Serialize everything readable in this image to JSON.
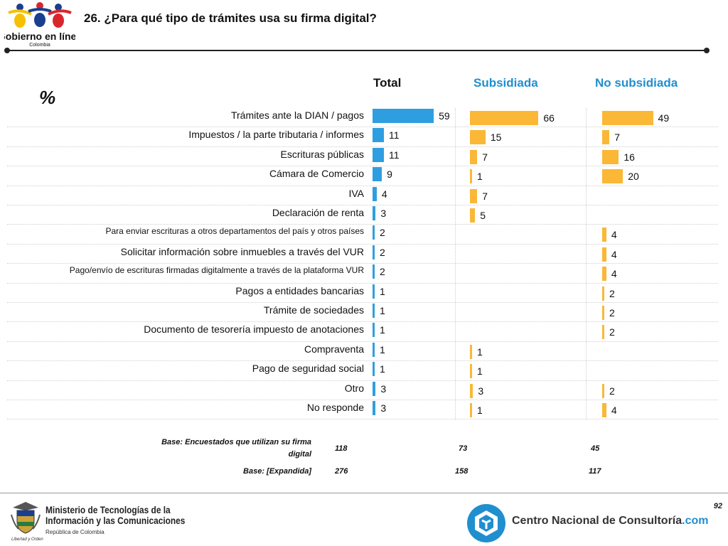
{
  "header": {
    "question": "26. ¿Para qué tipo de trámites usa su firma digital?",
    "logo_name": "Gobierno en línea",
    "logo_country": "Colombia"
  },
  "percent_symbol": "%",
  "colors": {
    "total": "#2f9ee0",
    "segment": "#fbb736",
    "separator": "#cfcfcf"
  },
  "chart_data": {
    "type": "bar",
    "orientation": "horizontal",
    "unit": "%",
    "categories": [
      "Trámites ante la DIAN / pagos",
      "Impuestos / la parte tributaria / informes",
      "Escrituras públicas",
      "Cámara de Comercio",
      "IVA",
      "Declaración de renta",
      "Para enviar escrituras a otros departamentos del país y otros países",
      "Solicitar información sobre inmuebles a través del VUR",
      "Pago/envío de escrituras firmadas digitalmente a través de la plataforma VUR",
      "Pagos a entidades bancarias",
      "Trámite de sociedades",
      "Documento de tesorería impuesto de anotaciones",
      "Compraventa",
      "Pago de seguridad social",
      "Otro",
      "No responde"
    ],
    "series": [
      {
        "name": "Total",
        "values": [
          59,
          11,
          11,
          9,
          4,
          3,
          2,
          2,
          2,
          1,
          1,
          1,
          1,
          1,
          3,
          3
        ]
      },
      {
        "name": "Subsidiada",
        "values": [
          66,
          15,
          7,
          1,
          7,
          5,
          null,
          null,
          null,
          null,
          null,
          null,
          1,
          1,
          3,
          1
        ]
      },
      {
        "name": "No subsidiada",
        "values": [
          49,
          7,
          16,
          20,
          null,
          null,
          4,
          4,
          4,
          2,
          2,
          2,
          null,
          null,
          2,
          4
        ]
      }
    ]
  },
  "bases": [
    {
      "label": "Base: Encuestados que utilizan su firma digital",
      "values": [
        "118",
        "73",
        "45"
      ]
    },
    {
      "label": "Base: [Expandida]",
      "values": [
        "276",
        "158",
        "117"
      ]
    }
  ],
  "footer": {
    "page_number": "92",
    "ministry_line1": "Ministerio de Tecnologías de la",
    "ministry_line2": "Información y las Comunicaciones",
    "ministry_sub": "República de Colombia",
    "ministry_motto": "Libertad y Orden",
    "cnc_name": "Centro Nacional de Consultoría",
    "cnc_domain": ".com"
  }
}
